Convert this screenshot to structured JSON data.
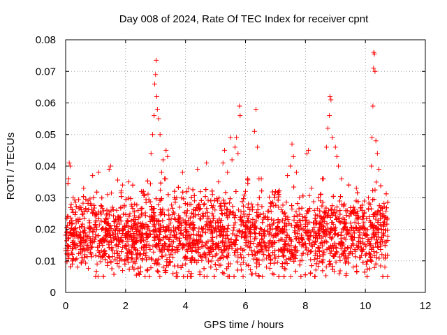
{
  "chart_data": {
    "type": "scatter",
    "title": "Day 008 of 2024, Rate Of TEC Index for receiver cpnt",
    "xlabel": "GPS time / hours",
    "ylabel": "ROTI / TECUs",
    "xlim": [
      0,
      12
    ],
    "ylim": [
      0,
      0.08
    ],
    "x_ticks": [
      0,
      2,
      4,
      6,
      8,
      10,
      12
    ],
    "x_tick_labels": [
      "0",
      "2",
      "4",
      "6",
      "8",
      "10",
      "12"
    ],
    "y_ticks": [
      0,
      0.01,
      0.02,
      0.03,
      0.04,
      0.05,
      0.06,
      0.07,
      0.08
    ],
    "y_tick_labels": [
      "0",
      "0.01",
      "0.02",
      "0.03",
      "0.04",
      "0.05",
      "0.06",
      "0.07",
      "0.08"
    ],
    "grid": true,
    "marker": "+",
    "color": "#ff0000",
    "bulk_band": {
      "x_range": [
        0.0,
        10.75
      ],
      "y_range": [
        0.005,
        0.036
      ],
      "typical_center": 0.018
    },
    "series": [
      {
        "name": "ROTI",
        "points": [
          [
            0.05,
            0.012
          ],
          [
            0.08,
            0.024
          ],
          [
            0.1,
            0.036
          ],
          [
            0.12,
            0.041
          ],
          [
            0.15,
            0.04
          ],
          [
            0.18,
            0.018
          ],
          [
            0.22,
            0.009
          ],
          [
            0.25,
            0.03
          ],
          [
            0.3,
            0.015
          ],
          [
            0.35,
            0.022
          ],
          [
            0.4,
            0.008
          ],
          [
            0.45,
            0.027
          ],
          [
            0.5,
            0.019
          ],
          [
            0.55,
            0.011
          ],
          [
            0.6,
            0.033
          ],
          [
            0.7,
            0.014
          ],
          [
            0.75,
            0.029
          ],
          [
            0.8,
            0.021
          ],
          [
            0.9,
            0.037
          ],
          [
            0.95,
            0.016
          ],
          [
            1.0,
            0.025
          ],
          [
            1.05,
            0.009
          ],
          [
            1.1,
            0.038
          ],
          [
            1.2,
            0.02
          ],
          [
            1.3,
            0.013
          ],
          [
            1.4,
            0.031
          ],
          [
            1.45,
            0.039
          ],
          [
            1.5,
            0.04
          ],
          [
            1.6,
            0.017
          ],
          [
            1.7,
            0.026
          ],
          [
            1.8,
            0.01
          ],
          [
            1.9,
            0.034
          ],
          [
            2.0,
            0.018
          ],
          [
            2.1,
            0.035
          ],
          [
            2.2,
            0.012
          ],
          [
            2.3,
            0.028
          ],
          [
            2.4,
            0.021
          ],
          [
            2.5,
            0.008
          ],
          [
            2.6,
            0.032
          ],
          [
            2.7,
            0.015
          ],
          [
            2.8,
            0.024
          ],
          [
            2.85,
            0.044
          ],
          [
            2.9,
            0.05
          ],
          [
            2.95,
            0.056
          ],
          [
            2.97,
            0.066
          ],
          [
            3.0,
            0.069
          ],
          [
            3.02,
            0.0735
          ],
          [
            3.04,
            0.062
          ],
          [
            3.06,
            0.058
          ],
          [
            3.1,
            0.055
          ],
          [
            3.15,
            0.05
          ],
          [
            3.2,
            0.038
          ],
          [
            3.25,
            0.042
          ],
          [
            3.3,
            0.036
          ],
          [
            3.35,
            0.045
          ],
          [
            3.4,
            0.043
          ],
          [
            3.5,
            0.022
          ],
          [
            3.6,
            0.016
          ],
          [
            3.7,
            0.03
          ],
          [
            3.8,
            0.027
          ],
          [
            3.9,
            0.038
          ],
          [
            4.0,
            0.02
          ],
          [
            4.1,
            0.033
          ],
          [
            4.2,
            0.011
          ],
          [
            4.3,
            0.029
          ],
          [
            4.4,
            0.039
          ],
          [
            4.5,
            0.018
          ],
          [
            4.6,
            0.024
          ],
          [
            4.7,
            0.041
          ],
          [
            4.8,
            0.014
          ],
          [
            4.9,
            0.031
          ],
          [
            5.0,
            0.022
          ],
          [
            5.1,
            0.035
          ],
          [
            5.2,
            0.026
          ],
          [
            5.25,
            0.041
          ],
          [
            5.3,
            0.045
          ],
          [
            5.4,
            0.038
          ],
          [
            5.5,
            0.049
          ],
          [
            5.55,
            0.042
          ],
          [
            5.6,
            0.016
          ],
          [
            5.65,
            0.046
          ],
          [
            5.7,
            0.049
          ],
          [
            5.75,
            0.044
          ],
          [
            5.8,
            0.059
          ],
          [
            5.82,
            0.056
          ],
          [
            5.9,
            0.019
          ],
          [
            6.0,
            0.032
          ],
          [
            6.1,
            0.012
          ],
          [
            6.2,
            0.028
          ],
          [
            6.3,
            0.051
          ],
          [
            6.35,
            0.058
          ],
          [
            6.4,
            0.046
          ],
          [
            6.45,
            0.036
          ],
          [
            6.5,
            0.015
          ],
          [
            6.6,
            0.025
          ],
          [
            6.7,
            0.008
          ],
          [
            6.8,
            0.021
          ],
          [
            6.9,
            0.006
          ],
          [
            7.0,
            0.018
          ],
          [
            7.1,
            0.027
          ],
          [
            7.2,
            0.013
          ],
          [
            7.3,
            0.022
          ],
          [
            7.4,
            0.037
          ],
          [
            7.5,
            0.04
          ],
          [
            7.55,
            0.047
          ],
          [
            7.6,
            0.043
          ],
          [
            7.7,
            0.038
          ],
          [
            7.8,
            0.03
          ],
          [
            7.9,
            0.024
          ],
          [
            8.0,
            0.019
          ],
          [
            8.05,
            0.044
          ],
          [
            8.1,
            0.045
          ],
          [
            8.2,
            0.033
          ],
          [
            8.3,
            0.026
          ],
          [
            8.4,
            0.017
          ],
          [
            8.5,
            0.031
          ],
          [
            8.6,
            0.036
          ],
          [
            8.7,
            0.046
          ],
          [
            8.75,
            0.052
          ],
          [
            8.8,
            0.056
          ],
          [
            8.82,
            0.062
          ],
          [
            8.85,
            0.061
          ],
          [
            8.9,
            0.049
          ],
          [
            9.0,
            0.046
          ],
          [
            9.05,
            0.043
          ],
          [
            9.1,
            0.04
          ],
          [
            9.2,
            0.036
          ],
          [
            9.3,
            0.028
          ],
          [
            9.4,
            0.02
          ],
          [
            9.5,
            0.014
          ],
          [
            9.6,
            0.026
          ],
          [
            9.7,
            0.033
          ],
          [
            9.8,
            0.011
          ],
          [
            9.9,
            0.024
          ],
          [
            10.0,
            0.018
          ],
          [
            10.1,
            0.03
          ],
          [
            10.2,
            0.04
          ],
          [
            10.22,
            0.049
          ],
          [
            10.25,
            0.059
          ],
          [
            10.27,
            0.071
          ],
          [
            10.28,
            0.076
          ],
          [
            10.3,
            0.0755
          ],
          [
            10.32,
            0.07
          ],
          [
            10.35,
            0.048
          ],
          [
            10.4,
            0.044
          ],
          [
            10.45,
            0.039
          ],
          [
            10.5,
            0.026
          ],
          [
            10.55,
            0.012
          ],
          [
            10.6,
            0.02
          ],
          [
            10.65,
            0.008
          ],
          [
            10.7,
            0.016
          ],
          [
            10.72,
            0.023
          ],
          [
            10.74,
            0.005
          ]
        ]
      }
    ]
  }
}
